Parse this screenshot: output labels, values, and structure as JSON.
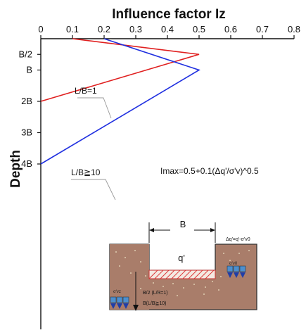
{
  "chart_data": {
    "type": "line",
    "title": "Influence factor Iz",
    "ylabel": "Depth",
    "xlim": [
      0,
      0.8
    ],
    "x_ticks": [
      "0",
      "0.1",
      "0.2",
      "0.3",
      "0.4",
      "0.5",
      "0.6",
      "0.7",
      "0.8"
    ],
    "y_ticks": [
      "B/2",
      "B",
      "2B",
      "3B",
      "4B"
    ],
    "y_units": "B",
    "ylim": [
      0,
      4.5
    ],
    "y_inverted": true,
    "series": [
      {
        "name": "L/B=1",
        "color": "#e02020",
        "x": [
          0.1,
          0.5,
          0.0
        ],
        "y": [
          0,
          0.5,
          2
        ]
      },
      {
        "name": "L/B≧10",
        "color": "#2030e0",
        "x": [
          0.2,
          0.5,
          0.0
        ],
        "y": [
          0,
          1,
          4
        ]
      }
    ],
    "annotations": {
      "formula": "Imax=0.5+0.1(Δq'/σ'v)^0.5",
      "label_lb1": "L/B=1",
      "label_lb10": "L/B≧10"
    },
    "inset": {
      "width_label": "B",
      "load_label": "q'",
      "delta_label": "Δq'=q'-σ'v0",
      "sigma_v0": "σ'v0",
      "sigma_vz": "σ'vz",
      "depth1": "B/2 (L/B=1)",
      "depth2": "B(L/B≧10)"
    }
  }
}
